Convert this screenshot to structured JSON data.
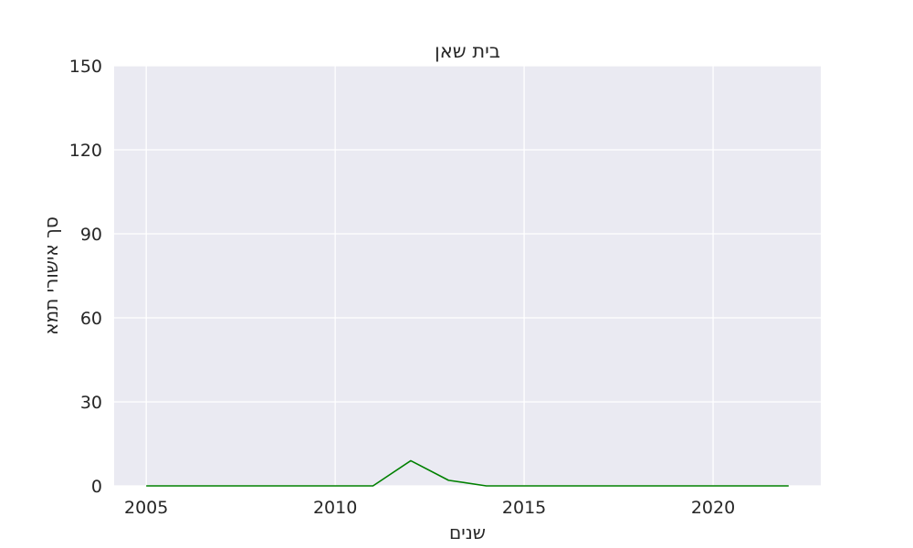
{
  "chart_data": {
    "type": "line",
    "title": "בית שאן",
    "xlabel": "שנים",
    "ylabel": "סך אישורי תמא",
    "x": [
      2005,
      2006,
      2007,
      2008,
      2009,
      2010,
      2011,
      2012,
      2013,
      2014,
      2015,
      2016,
      2017,
      2018,
      2019,
      2020,
      2021,
      2022
    ],
    "series": [
      {
        "values": [
          0,
          0,
          0,
          0,
          0,
          0,
          0,
          9,
          2,
          0,
          0,
          0,
          0,
          0,
          0,
          0,
          0,
          0
        ],
        "color": "#008000"
      }
    ],
    "xticks": [
      2005,
      2010,
      2015,
      2020
    ],
    "yticks": [
      0,
      30,
      60,
      90,
      120,
      150
    ],
    "xlim": [
      2004.15,
      2022.85
    ],
    "ylim": [
      0,
      150
    ],
    "grid": true,
    "background": "#eaeaf2",
    "grid_color": "#ffffff"
  }
}
